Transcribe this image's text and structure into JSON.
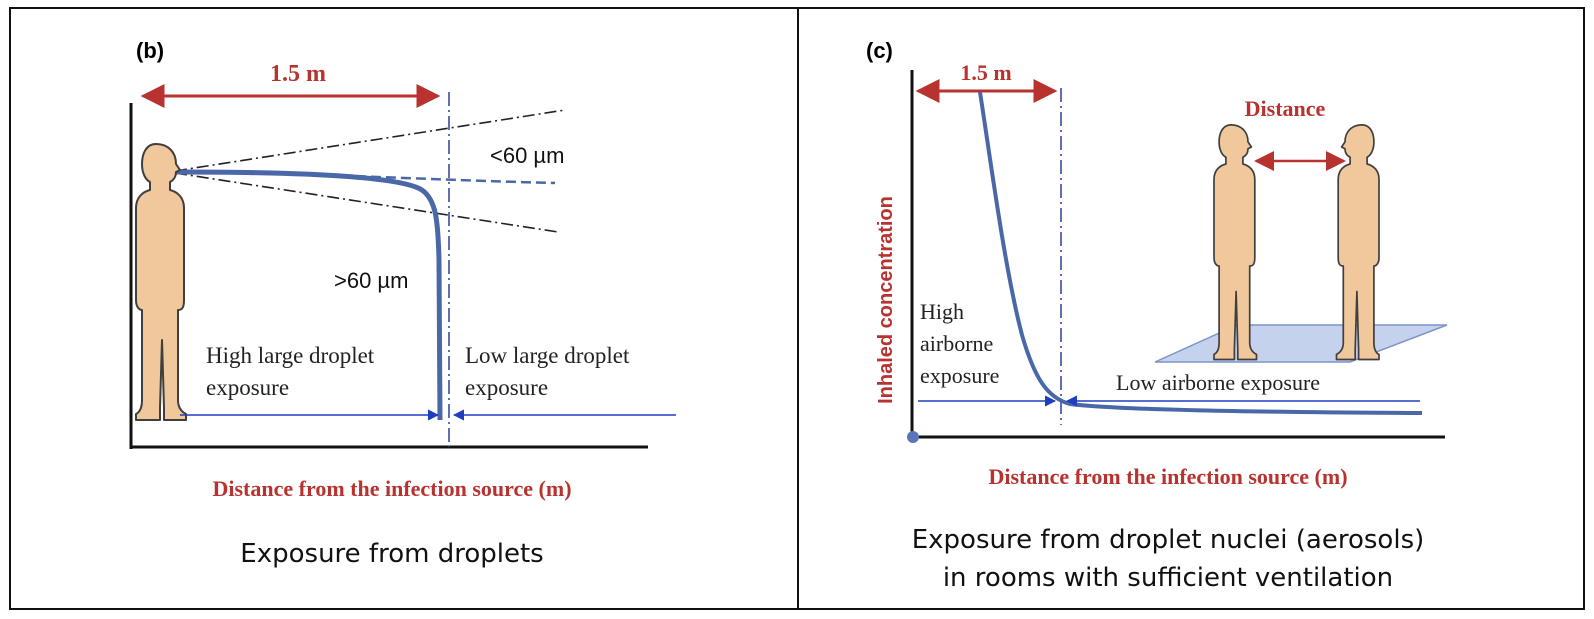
{
  "colors": {
    "red": "#b8332f",
    "curve": "#4a67a8",
    "blue": "#1f3fbf",
    "skin": "#f0c89c",
    "skin_outline": "#3f3f3f",
    "floor": "#c4d2ee"
  },
  "panel_b": {
    "label": "(b)",
    "distance": "1.5 m",
    "small": "<60 µm",
    "large": ">60 µm",
    "left_zone": [
      "High large droplet",
      "exposure"
    ],
    "right_zone": [
      "Low large droplet",
      "exposure"
    ],
    "xlabel": "Distance from the infection source (m)",
    "caption": "Exposure from droplets"
  },
  "panel_c": {
    "label": "(c)",
    "distance": "1.5 m",
    "between": "Distance",
    "ylabel": "Inhaled concentration",
    "left_zone": [
      "High",
      "airborne",
      "exposure"
    ],
    "right_zone": "Low airborne exposure",
    "xlabel": "Distance from the infection source (m)",
    "caption": [
      "Exposure from droplet nuclei (aerosols)",
      "in rooms with sufficient ventilation"
    ]
  }
}
